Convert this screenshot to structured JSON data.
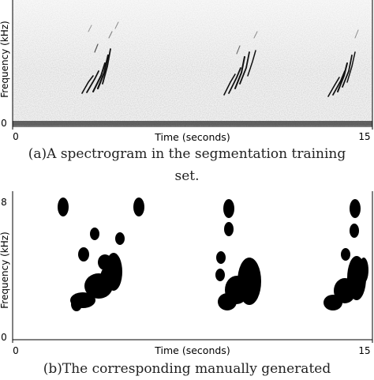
{
  "panel_a": {
    "ylabel": "Frequency (kHz)",
    "xlabel": "Time (seconds)",
    "x_ticks": [
      "0",
      "15"
    ],
    "y_tick_bottom": "0",
    "caption_line1": "(a)A spectrogram in the segmentation training",
    "caption_line2": "set."
  },
  "panel_b": {
    "ylabel": "Frequency (kHz)",
    "xlabel": "Time (seconds)",
    "x_ticks": [
      "0",
      "15"
    ],
    "y_ticks": [
      "8",
      "0"
    ],
    "caption_line1": "(b)The corresponding manually generated"
  },
  "colors": {
    "ink": "#000000",
    "background": "#ffffff",
    "noise": "#d8d8d8"
  }
}
